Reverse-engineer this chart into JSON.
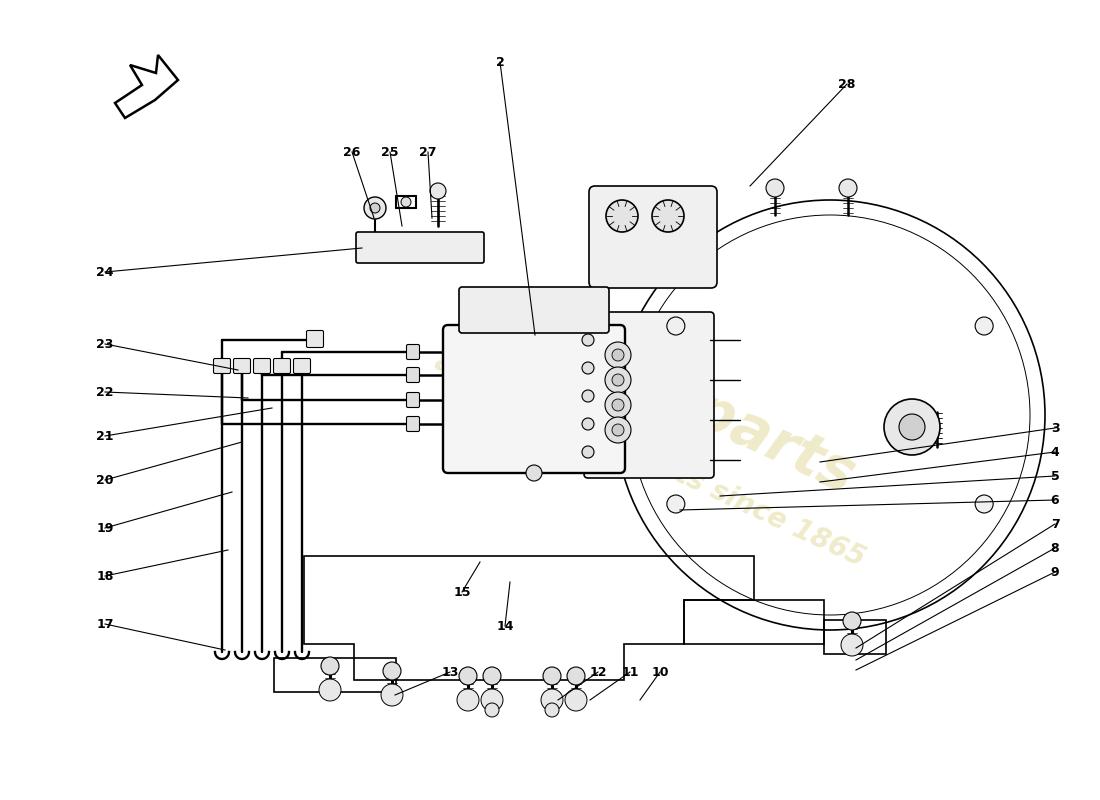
{
  "background_color": "#ffffff",
  "line_color": "#000000",
  "watermark_color": "#c8b840",
  "watermark_alpha": 0.28,
  "leader_lines": [
    [
      2,
      500,
      62,
      535,
      335
    ],
    [
      3,
      1055,
      428,
      820,
      462
    ],
    [
      4,
      1055,
      452,
      820,
      482
    ],
    [
      5,
      1055,
      476,
      720,
      496
    ],
    [
      6,
      1055,
      500,
      680,
      510
    ],
    [
      7,
      1055,
      524,
      856,
      648
    ],
    [
      8,
      1055,
      548,
      856,
      660
    ],
    [
      9,
      1055,
      572,
      856,
      670
    ],
    [
      10,
      660,
      672,
      640,
      700
    ],
    [
      11,
      630,
      672,
      590,
      700
    ],
    [
      12,
      598,
      672,
      558,
      700
    ],
    [
      13,
      450,
      672,
      395,
      695
    ],
    [
      14,
      505,
      626,
      510,
      582
    ],
    [
      15,
      462,
      592,
      480,
      562
    ],
    [
      17,
      105,
      624,
      225,
      650
    ],
    [
      18,
      105,
      576,
      228,
      550
    ],
    [
      19,
      105,
      528,
      232,
      492
    ],
    [
      20,
      105,
      480,
      242,
      442
    ],
    [
      21,
      105,
      436,
      272,
      408
    ],
    [
      22,
      105,
      392,
      248,
      398
    ],
    [
      23,
      105,
      344,
      238,
      370
    ],
    [
      24,
      105,
      272,
      362,
      248
    ],
    [
      25,
      390,
      152,
      402,
      226
    ],
    [
      26,
      352,
      152,
      374,
      218
    ],
    [
      27,
      428,
      152,
      432,
      218
    ],
    [
      28,
      847,
      84,
      750,
      186
    ]
  ]
}
